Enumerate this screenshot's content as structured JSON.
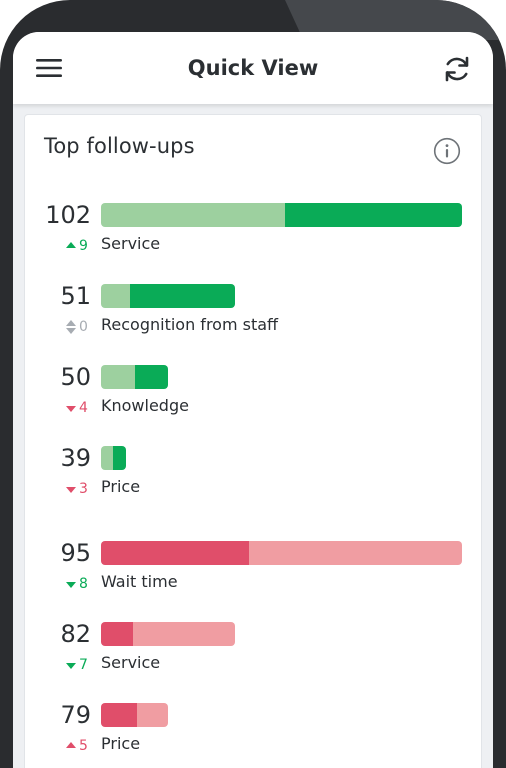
{
  "header": {
    "title": "Quick View",
    "menu_icon": "hamburger-menu-icon",
    "refresh_icon": "refresh-icon"
  },
  "card": {
    "title": "Top follow-ups",
    "info_icon": "info-icon"
  },
  "colors": {
    "positive_dark": "#0aab57",
    "positive_light": "#9dd09f",
    "negative_dark": "#e04e6a",
    "negative_light": "#f09da2",
    "change_up_good": "#0aab57",
    "change_down_bad": "#e04e6a",
    "change_neutral": "#a7acb2"
  },
  "items": [
    {
      "count": "102",
      "label": "Service",
      "change": "9",
      "trend": "up",
      "tone": "positive",
      "total_fraction": 1.0,
      "light_fraction": 0.51,
      "light_first": true
    },
    {
      "count": "51",
      "label": "Recognition from staff",
      "change": "0",
      "trend": "neutral",
      "tone": "positive",
      "total_fraction": 0.37,
      "light_fraction": 0.22,
      "light_first": true
    },
    {
      "count": "50",
      "label": "Knowledge",
      "change": "4",
      "trend": "down",
      "tone": "positive",
      "total_fraction": 0.185,
      "light_fraction": 0.5,
      "light_first": true
    },
    {
      "count": "39",
      "label": "Price",
      "change": "3",
      "trend": "down",
      "tone": "positive",
      "total_fraction": 0.07,
      "light_fraction": 0.48,
      "light_first": true
    },
    {
      "count": "95",
      "label": "Wait time",
      "change": "8",
      "trend": "down",
      "tone": "negative",
      "total_fraction": 1.0,
      "dark_fraction": 0.41,
      "light_first": false
    },
    {
      "count": "82",
      "label": "Service",
      "change": "7",
      "trend": "down",
      "tone": "negative",
      "total_fraction": 0.37,
      "dark_fraction": 0.24,
      "light_first": false
    },
    {
      "count": "79",
      "label": "Price",
      "change": "5",
      "trend": "up",
      "tone": "negative",
      "total_fraction": 0.185,
      "dark_fraction": 0.53,
      "light_first": false
    }
  ]
}
